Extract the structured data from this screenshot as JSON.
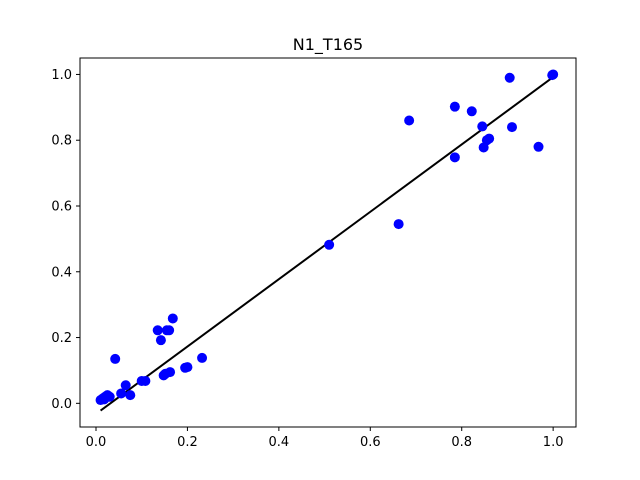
{
  "chart_data": {
    "type": "scatter",
    "title": "N1_T165",
    "xlabel": "",
    "ylabel": "",
    "xlim": [
      -0.035,
      1.05
    ],
    "ylim": [
      -0.072,
      1.05
    ],
    "xticks": [
      "0.0",
      "0.2",
      "0.4",
      "0.6",
      "0.8",
      "1.0"
    ],
    "yticks": [
      "0.0",
      "0.2",
      "0.4",
      "0.6",
      "0.8",
      "1.0"
    ],
    "grid": false,
    "colors": {
      "points": "#0000ff",
      "fit_line": "#000000"
    },
    "series": [
      {
        "type": "scatter",
        "points": [
          [
            0.01,
            0.01
          ],
          [
            0.015,
            0.015
          ],
          [
            0.02,
            0.02
          ],
          [
            0.025,
            0.025
          ],
          [
            0.018,
            0.012
          ],
          [
            0.03,
            0.02
          ],
          [
            0.042,
            0.135
          ],
          [
            0.055,
            0.03
          ],
          [
            0.065,
            0.055
          ],
          [
            0.075,
            0.025
          ],
          [
            0.1,
            0.068
          ],
          [
            0.108,
            0.068
          ],
          [
            0.135,
            0.222
          ],
          [
            0.142,
            0.192
          ],
          [
            0.148,
            0.085
          ],
          [
            0.152,
            0.09
          ],
          [
            0.155,
            0.222
          ],
          [
            0.16,
            0.222
          ],
          [
            0.162,
            0.095
          ],
          [
            0.168,
            0.258
          ],
          [
            0.195,
            0.108
          ],
          [
            0.2,
            0.11
          ],
          [
            0.232,
            0.138
          ],
          [
            0.51,
            0.482
          ],
          [
            0.662,
            0.545
          ],
          [
            0.685,
            0.86
          ],
          [
            0.785,
            0.902
          ],
          [
            0.785,
            0.748
          ],
          [
            0.822,
            0.888
          ],
          [
            0.845,
            0.842
          ],
          [
            0.848,
            0.778
          ],
          [
            0.855,
            0.8
          ],
          [
            0.86,
            0.805
          ],
          [
            0.905,
            0.99
          ],
          [
            0.91,
            0.84
          ],
          [
            0.968,
            0.78
          ],
          [
            0.998,
            0.998
          ],
          [
            1.0,
            1.0
          ]
        ]
      },
      {
        "type": "line",
        "points": [
          [
            0.01,
            -0.022
          ],
          [
            1.0,
            0.992
          ]
        ]
      }
    ]
  }
}
